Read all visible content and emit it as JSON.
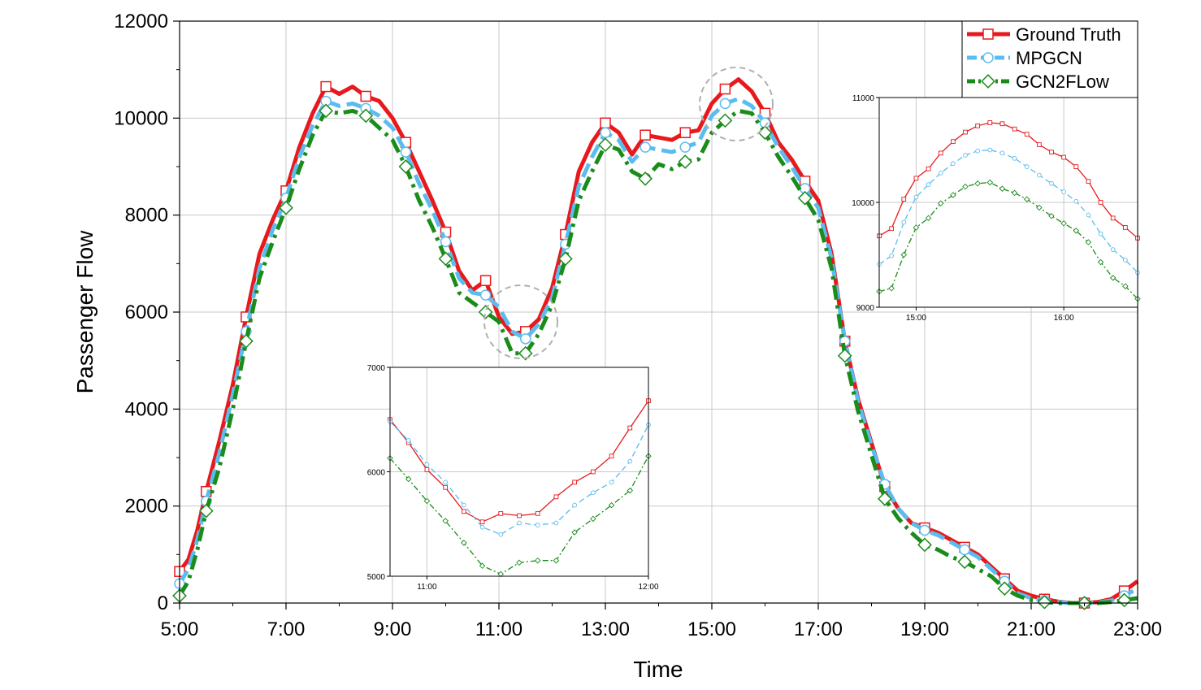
{
  "colors": {
    "gt": "#e8191d",
    "mp": "#5bbcef",
    "gc": "#1a8c1a",
    "grid": "#c8c8c8",
    "circle": "#b0b0b0"
  },
  "chart_data": [
    {
      "id": "main",
      "type": "line",
      "title": "",
      "xlabel": "Time",
      "ylabel": "Passenger Flow",
      "xlim": [
        "5:00",
        "23:00"
      ],
      "ylim": [
        0,
        12000
      ],
      "x_ticks": [
        "5:00",
        "7:00",
        "9:00",
        "11:00",
        "13:00",
        "15:00",
        "17:00",
        "19:00",
        "21:00",
        "23:00"
      ],
      "y_ticks": [
        "0",
        "2000",
        "4000",
        "6000",
        "8000",
        "10000",
        "12000"
      ],
      "grid": true,
      "legend": "top-right",
      "series": [
        {
          "name": "Ground Truth",
          "color": "#e8191d",
          "marker": "square",
          "x": [
            "5:00",
            "5:10",
            "5:20",
            "5:30",
            "5:45",
            "6:00",
            "6:15",
            "6:30",
            "6:45",
            "7:00",
            "7:15",
            "7:30",
            "7:45",
            "8:00",
            "8:15",
            "8:30",
            "8:45",
            "9:00",
            "9:15",
            "9:30",
            "9:45",
            "10:00",
            "10:15",
            "10:30",
            "10:45",
            "11:00",
            "11:15",
            "11:30",
            "11:45",
            "12:00",
            "12:15",
            "12:30",
            "12:45",
            "13:00",
            "13:15",
            "13:30",
            "13:45",
            "14:00",
            "14:15",
            "14:30",
            "14:45",
            "15:00",
            "15:15",
            "15:30",
            "15:45",
            "16:00",
            "16:15",
            "16:30",
            "16:45",
            "17:00",
            "17:15",
            "17:30",
            "17:45",
            "18:00",
            "18:15",
            "18:30",
            "18:45",
            "19:00",
            "19:15",
            "19:30",
            "19:45",
            "20:00",
            "20:15",
            "20:30",
            "20:45",
            "21:00",
            "21:15",
            "21:30",
            "21:45",
            "22:00",
            "22:15",
            "22:30",
            "22:45",
            "23:00"
          ],
          "y": [
            650,
            900,
            1500,
            2300,
            3350,
            4500,
            5900,
            7200,
            7900,
            8500,
            9400,
            10100,
            10650,
            10500,
            10650,
            10450,
            10350,
            10000,
            9500,
            8900,
            8300,
            7650,
            6850,
            6450,
            6650,
            5900,
            5550,
            5600,
            5850,
            6500,
            7600,
            8900,
            9500,
            9900,
            9700,
            9250,
            9650,
            9600,
            9550,
            9700,
            9750,
            10300,
            10600,
            10800,
            10550,
            10100,
            9500,
            9150,
            8700,
            8300,
            7200,
            5400,
            4200,
            3300,
            2400,
            1950,
            1650,
            1550,
            1450,
            1300,
            1150,
            1000,
            750,
            500,
            250,
            150,
            80,
            30,
            0,
            0,
            20,
            80,
            250,
            450
          ]
        },
        {
          "name": "MPGCN",
          "color": "#5bbcef",
          "marker": "circle",
          "x": [
            "5:00",
            "5:10",
            "5:20",
            "5:30",
            "5:45",
            "6:00",
            "6:15",
            "6:30",
            "6:45",
            "7:00",
            "7:15",
            "7:30",
            "7:45",
            "8:00",
            "8:15",
            "8:30",
            "8:45",
            "9:00",
            "9:15",
            "9:30",
            "9:45",
            "10:00",
            "10:15",
            "10:30",
            "10:45",
            "11:00",
            "11:15",
            "11:30",
            "11:45",
            "12:00",
            "12:15",
            "12:30",
            "12:45",
            "13:00",
            "13:15",
            "13:30",
            "13:45",
            "14:00",
            "14:15",
            "14:30",
            "14:45",
            "15:00",
            "15:15",
            "15:30",
            "15:45",
            "16:00",
            "16:15",
            "16:30",
            "16:45",
            "17:00",
            "17:15",
            "17:30",
            "17:45",
            "18:00",
            "18:15",
            "18:30",
            "18:45",
            "19:00",
            "19:15",
            "19:30",
            "19:45",
            "20:00",
            "20:15",
            "20:30",
            "20:45",
            "21:00",
            "21:15",
            "21:30",
            "21:45",
            "22:00",
            "22:15",
            "22:30",
            "22:45",
            "23:00"
          ],
          "y": [
            400,
            700,
            1300,
            2100,
            3100,
            4300,
            5600,
            6900,
            7700,
            8350,
            9200,
            9850,
            10350,
            10250,
            10300,
            10200,
            10050,
            9800,
            9300,
            8650,
            8100,
            7450,
            6700,
            6400,
            6350,
            6100,
            5600,
            5450,
            5750,
            6300,
            7400,
            8600,
            9200,
            9700,
            9550,
            9100,
            9400,
            9350,
            9300,
            9400,
            9500,
            10050,
            10300,
            10400,
            10250,
            9900,
            9400,
            9000,
            8550,
            8150,
            7100,
            5400,
            4150,
            3250,
            2450,
            1950,
            1650,
            1500,
            1400,
            1250,
            1100,
            950,
            700,
            450,
            200,
            100,
            50,
            20,
            0,
            0,
            10,
            50,
            150,
            300
          ]
        },
        {
          "name": "GCN2FLow",
          "color": "#1a8c1a",
          "marker": "diamond",
          "x": [
            "5:00",
            "5:10",
            "5:20",
            "5:30",
            "5:45",
            "6:00",
            "6:15",
            "6:30",
            "6:45",
            "7:00",
            "7:15",
            "7:30",
            "7:45",
            "8:00",
            "8:15",
            "8:30",
            "8:45",
            "9:00",
            "9:15",
            "9:30",
            "9:45",
            "10:00",
            "10:15",
            "10:30",
            "10:45",
            "11:00",
            "11:15",
            "11:30",
            "11:45",
            "12:00",
            "12:15",
            "12:30",
            "12:45",
            "13:00",
            "13:15",
            "13:30",
            "13:45",
            "14:00",
            "14:15",
            "14:30",
            "14:45",
            "15:00",
            "15:15",
            "15:30",
            "15:45",
            "16:00",
            "16:15",
            "16:30",
            "16:45",
            "17:00",
            "17:15",
            "17:30",
            "17:45",
            "18:00",
            "18:15",
            "18:30",
            "18:45",
            "19:00",
            "19:15",
            "19:30",
            "19:45",
            "20:00",
            "20:15",
            "20:30",
            "20:45",
            "21:00",
            "21:15",
            "21:30",
            "21:45",
            "22:00",
            "22:15",
            "22:30",
            "22:45",
            "23:00"
          ],
          "y": [
            150,
            450,
            1100,
            1900,
            2800,
            4000,
            5400,
            6700,
            7450,
            8150,
            8950,
            9650,
            10150,
            10100,
            10150,
            10050,
            9800,
            9550,
            9000,
            8300,
            7750,
            7100,
            6400,
            6200,
            6000,
            5800,
            5150,
            5150,
            5550,
            6150,
            7100,
            8300,
            8900,
            9450,
            9350,
            8900,
            8750,
            9050,
            8950,
            9100,
            9150,
            9700,
            9950,
            10150,
            10100,
            9700,
            9200,
            8800,
            8350,
            7900,
            6900,
            5100,
            3950,
            3050,
            2150,
            1750,
            1450,
            1200,
            1100,
            950,
            850,
            700,
            550,
            300,
            150,
            60,
            20,
            0,
            0,
            0,
            0,
            20,
            60,
            100
          ]
        }
      ]
    },
    {
      "id": "inset-midday",
      "type": "line",
      "xlim": [
        "10:50",
        "12:00"
      ],
      "ylim": [
        5000,
        7000
      ],
      "x_ticks": [
        "11:00",
        "12:00"
      ],
      "y_ticks": [
        "5000",
        "6000",
        "7000"
      ],
      "series": [
        {
          "name": "Ground Truth",
          "x": [
            "10:50",
            "10:55",
            "11:00",
            "11:05",
            "11:10",
            "11:15",
            "11:20",
            "11:25",
            "11:30",
            "11:35",
            "11:40",
            "11:45",
            "11:50",
            "11:55",
            "12:00"
          ],
          "y": [
            6500,
            6280,
            6020,
            5850,
            5620,
            5520,
            5600,
            5580,
            5600,
            5760,
            5900,
            6000,
            6150,
            6420,
            6680
          ]
        },
        {
          "name": "MPGCN",
          "x": [
            "10:50",
            "10:55",
            "11:00",
            "11:05",
            "11:10",
            "11:15",
            "11:20",
            "11:25",
            "11:30",
            "11:35",
            "11:40",
            "11:45",
            "11:50",
            "11:55",
            "12:00"
          ],
          "y": [
            6480,
            6300,
            6070,
            5900,
            5680,
            5470,
            5400,
            5510,
            5490,
            5510,
            5680,
            5800,
            5900,
            6100,
            6450
          ]
        },
        {
          "name": "GCN2FLow",
          "x": [
            "10:50",
            "10:55",
            "11:00",
            "11:05",
            "11:10",
            "11:15",
            "11:20",
            "11:25",
            "11:30",
            "11:35",
            "11:40",
            "11:45",
            "11:50",
            "11:55",
            "12:00"
          ],
          "y": [
            6130,
            5930,
            5720,
            5530,
            5320,
            5100,
            5020,
            5130,
            5150,
            5150,
            5420,
            5550,
            5680,
            5820,
            6150
          ]
        }
      ]
    },
    {
      "id": "inset-afternoon",
      "type": "line",
      "xlim": [
        "14:45",
        "16:30"
      ],
      "ylim": [
        9000,
        11000
      ],
      "x_ticks": [
        "15:00",
        "16:00"
      ],
      "y_ticks": [
        "9000",
        "10000",
        "11000"
      ],
      "series": [
        {
          "name": "Ground Truth",
          "x": [
            "14:45",
            "14:50",
            "14:55",
            "15:00",
            "15:05",
            "15:10",
            "15:15",
            "15:20",
            "15:25",
            "15:30",
            "15:35",
            "15:40",
            "15:45",
            "15:50",
            "15:55",
            "16:00",
            "16:05",
            "16:10",
            "16:15",
            "16:20",
            "16:25",
            "16:30"
          ],
          "y": [
            9680,
            9750,
            10030,
            10230,
            10320,
            10470,
            10580,
            10670,
            10730,
            10760,
            10750,
            10700,
            10650,
            10550,
            10480,
            10430,
            10340,
            10200,
            10000,
            9850,
            9760,
            9660
          ]
        },
        {
          "name": "MPGCN",
          "x": [
            "14:45",
            "14:50",
            "14:55",
            "15:00",
            "15:05",
            "15:10",
            "15:15",
            "15:20",
            "15:25",
            "15:30",
            "15:35",
            "15:40",
            "15:45",
            "15:50",
            "15:55",
            "16:00",
            "16:05",
            "16:10",
            "16:15",
            "16:20",
            "16:25",
            "16:30"
          ],
          "y": [
            9410,
            9490,
            9810,
            10050,
            10170,
            10280,
            10370,
            10450,
            10490,
            10500,
            10470,
            10420,
            10340,
            10260,
            10180,
            10100,
            10010,
            9880,
            9700,
            9550,
            9450,
            9330
          ]
        },
        {
          "name": "GCN2FLow",
          "x": [
            "14:45",
            "14:50",
            "14:55",
            "15:00",
            "15:05",
            "15:10",
            "15:15",
            "15:20",
            "15:25",
            "15:30",
            "15:35",
            "15:40",
            "15:45",
            "15:50",
            "15:55",
            "16:00",
            "16:05",
            "16:10",
            "16:15",
            "16:20",
            "16:25",
            "16:30"
          ],
          "y": [
            9150,
            9180,
            9500,
            9760,
            9850,
            9990,
            10070,
            10150,
            10180,
            10190,
            10130,
            10090,
            10030,
            9950,
            9870,
            9800,
            9730,
            9620,
            9430,
            9280,
            9200,
            9080
          ]
        }
      ]
    }
  ]
}
